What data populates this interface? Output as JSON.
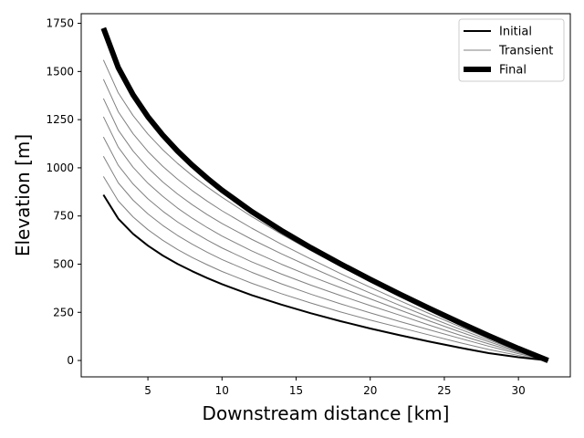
{
  "chart_data": {
    "type": "line",
    "xlabel": "Downstream distance [km]",
    "ylabel": "Elevation [m]",
    "xlim": [
      0.5,
      33.5
    ],
    "ylim": [
      -85,
      1800
    ],
    "xticks": [
      5,
      10,
      15,
      20,
      25,
      30
    ],
    "yticks": [
      0,
      250,
      500,
      750,
      1000,
      1250,
      1500,
      1750
    ],
    "grid": false,
    "legend": {
      "placement": "top-right",
      "entries": [
        {
          "label": "Initial",
          "color": "#000000",
          "style": "medium"
        },
        {
          "label": "Transient",
          "color": "#808080",
          "style": "thin"
        },
        {
          "label": "Final",
          "color": "#000000",
          "style": "thick"
        }
      ]
    },
    "x": [
      2,
      3,
      4,
      5,
      6,
      7,
      8,
      9,
      10,
      12,
      14,
      16,
      18,
      20,
      22,
      24,
      26,
      28,
      30,
      32
    ],
    "series": [
      {
        "name": "Initial",
        "color": "#000000",
        "style": "medium",
        "values": [
          860,
          736,
          657,
          596,
          545,
          501,
          463,
          428,
          396,
          339,
          290,
          245,
          204,
          166,
          131,
          98,
          67,
          38,
          17,
          0
        ]
      },
      {
        "color": "#808080",
        "style": "thin",
        "values": [
          955,
          828,
          745,
          679,
          624,
          576,
          534,
          497,
          462,
          401,
          347,
          298,
          252,
          210,
          171,
          132,
          93,
          57,
          26,
          0
        ]
      },
      {
        "color": "#808080",
        "style": "thin",
        "values": [
          1060,
          922,
          832,
          761,
          701,
          649,
          603,
          562,
          524,
          458,
          398,
          344,
          294,
          247,
          202,
          159,
          116,
          74,
          35,
          0
        ]
      },
      {
        "color": "#808080",
        "style": "thin",
        "values": [
          1160,
          1013,
          916,
          839,
          775,
          719,
          670,
          625,
          584,
          512,
          449,
          391,
          337,
          285,
          235,
          183,
          133,
          86,
          42,
          0
        ]
      },
      {
        "color": "#808080",
        "style": "thin",
        "values": [
          1265,
          1107,
          1003,
          920,
          852,
          791,
          738,
          690,
          646,
          569,
          500,
          437,
          378,
          320,
          262,
          205,
          150,
          97,
          47,
          0
        ]
      },
      {
        "color": "#808080",
        "style": "thin",
        "values": [
          1360,
          1196,
          1087,
          1000,
          927,
          864,
          808,
          757,
          711,
          629,
          554,
          484,
          416,
          350,
          286,
          224,
          164,
          106,
          51,
          0
        ]
      },
      {
        "color": "#808080",
        "style": "thin",
        "values": [
          1460,
          1291,
          1177,
          1085,
          1008,
          941,
          881,
          827,
          777,
          687,
          604,
          526,
          451,
          380,
          310,
          243,
          177,
          114,
          55,
          0
        ]
      },
      {
        "color": "#808080",
        "style": "thin",
        "values": [
          1560,
          1389,
          1271,
          1175,
          1094,
          1023,
          959,
          901,
          847,
          747,
          656,
          570,
          488,
          410,
          334,
          261,
          190,
          122,
          59,
          0
        ]
      },
      {
        "name": "Final",
        "color": "#000000",
        "style": "thick",
        "values": [
          1725,
          1520,
          1379,
          1265,
          1170,
          1087,
          1013,
          946,
          884,
          773,
          675,
          585,
          501,
          421,
          344,
          270,
          198,
          128,
          62,
          0
        ]
      }
    ]
  }
}
